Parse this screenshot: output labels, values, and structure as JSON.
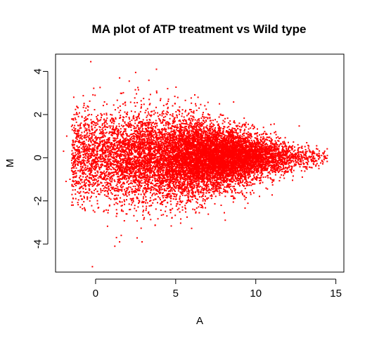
{
  "chart_data": {
    "type": "scatter",
    "title": "MA plot of ATP treatment vs Wild type",
    "xlabel": "A",
    "ylabel": "M",
    "xlim": [
      -2.5,
      15.5
    ],
    "ylim": [
      -5.3,
      4.8
    ],
    "x_ticks": [
      0,
      5,
      10,
      15
    ],
    "y_ticks": [
      -4,
      -2,
      0,
      2,
      4
    ],
    "grid": false,
    "legend": "none",
    "point_color": "#ff0000",
    "point_shape": "dot",
    "approx_point_count": 12000,
    "cloud_summary": {
      "description": "dense cloud centered near M=0 spanning A≈-2 to 14.5; spread is wide at low A (≈±3) and narrows toward high A (≈±0.6)",
      "a_range": [
        -2,
        14.5
      ],
      "m_center": 0
    },
    "points": [
      {
        "x": -0.3,
        "y": 4.45
      },
      {
        "x": 3.8,
        "y": 4.1
      },
      {
        "x": 2.5,
        "y": 3.95
      },
      {
        "x": 1.5,
        "y": 3.7
      },
      {
        "x": 2.1,
        "y": 3.55
      },
      {
        "x": 4.5,
        "y": 3.2
      },
      {
        "x": -0.6,
        "y": 2.3
      },
      {
        "x": -0.9,
        "y": 1.6
      },
      {
        "x": -1.8,
        "y": 1.0
      },
      {
        "x": -2.0,
        "y": 0.3
      },
      {
        "x": -1.6,
        "y": -1.0
      },
      {
        "x": -1.4,
        "y": -1.9
      },
      {
        "x": 1.2,
        "y": -4.1
      },
      {
        "x": 1.5,
        "y": -3.9
      },
      {
        "x": 2.9,
        "y": -3.9
      },
      {
        "x": 1.3,
        "y": -3.7
      },
      {
        "x": 1.6,
        "y": -3.6
      },
      {
        "x": -0.2,
        "y": -5.05
      },
      {
        "x": 14.3,
        "y": 0.3
      },
      {
        "x": 14.2,
        "y": -0.2
      },
      {
        "x": 13.8,
        "y": 0.55
      }
    ]
  }
}
